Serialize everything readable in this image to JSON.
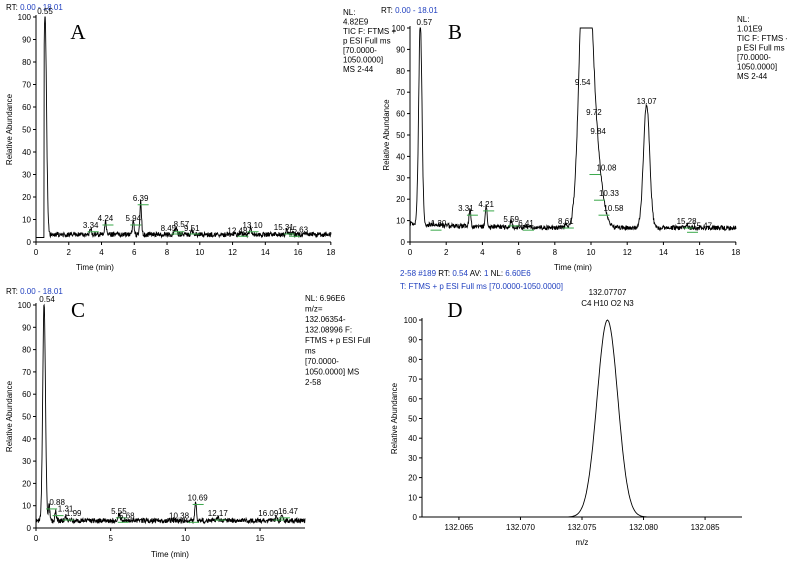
{
  "chart_data": [
    {
      "type": "line",
      "panel_letter": "A",
      "rt_label": "RT:",
      "rt_range": "0.00 - 18.01",
      "info_lines": [
        "NL:",
        "4.82E9",
        "TIC F: FTMS +",
        "p ESI Full ms",
        "[70.0000-",
        "1050.0000]",
        "MS 2-44"
      ],
      "xlabel": "Time (min)",
      "ylabel": "Relative Abundance",
      "xlim": [
        0,
        18.01
      ],
      "ylim": [
        0,
        100
      ],
      "xticks": [
        0,
        2,
        4,
        6,
        8,
        10,
        12,
        14,
        16,
        18
      ],
      "yticks": [
        0,
        10,
        20,
        30,
        40,
        50,
        60,
        70,
        80,
        90,
        100
      ],
      "peaks": [
        {
          "x": 0.55,
          "y": 100,
          "label": "0.55"
        },
        {
          "x": 3.34,
          "y": 5,
          "label": "3.34"
        },
        {
          "x": 4.24,
          "y": 8,
          "label": "4.24"
        },
        {
          "x": 5.94,
          "y": 8,
          "label": "5.94"
        },
        {
          "x": 6.39,
          "y": 17,
          "label": "6.39"
        },
        {
          "x": 8.45,
          "y": 4,
          "label": "8.45"
        },
        {
          "x": 8.57,
          "y": 5,
          "label": "8.57"
        },
        {
          "x": 9.51,
          "y": 4,
          "label": "9.51"
        },
        {
          "x": 12.48,
          "y": 3,
          "label": "12.48"
        },
        {
          "x": 13.1,
          "y": 5,
          "label": "13.10"
        },
        {
          "x": 15.31,
          "y": 4,
          "label": "15.31"
        },
        {
          "x": 15.63,
          "y": 3,
          "label": "15.63"
        }
      ]
    },
    {
      "type": "line",
      "panel_letter": "B",
      "rt_label": "RT:",
      "rt_range": "0.00 - 18.01",
      "info_lines": [
        "NL:",
        "1.01E9",
        "TIC F: FTMS -",
        "p ESI Full ms",
        "[70.0000-",
        "1050.0000]",
        "MS 2-44"
      ],
      "xlabel": "Time (min)",
      "ylabel": "Relative Abundance",
      "xlim": [
        0,
        18.01
      ],
      "ylim": [
        0,
        100
      ],
      "xticks": [
        0,
        2,
        4,
        6,
        8,
        10,
        12,
        14,
        16,
        18
      ],
      "yticks": [
        0,
        10,
        20,
        30,
        40,
        50,
        60,
        70,
        80,
        90,
        100
      ],
      "peaks": [
        {
          "x": 0.57,
          "y": 100,
          "label": "0.57"
        },
        {
          "x": 1.3,
          "y": 6,
          "label": "1.30"
        },
        {
          "x": 3.31,
          "y": 13,
          "label": "3.31"
        },
        {
          "x": 4.21,
          "y": 15,
          "label": "4.21"
        },
        {
          "x": 5.59,
          "y": 8,
          "label": "5.59"
        },
        {
          "x": 6.41,
          "y": 6,
          "label": "6.41"
        },
        {
          "x": 8.61,
          "y": 7,
          "label": "8.61"
        },
        {
          "x": 9.54,
          "y": 72,
          "label": "9.54"
        },
        {
          "x": 9.72,
          "y": 58,
          "label": "9.72"
        },
        {
          "x": 9.84,
          "y": 49,
          "label": "9.84"
        },
        {
          "x": 10.08,
          "y": 32,
          "label": "10.08"
        },
        {
          "x": 10.33,
          "y": 20,
          "label": "10.33"
        },
        {
          "x": 10.58,
          "y": 13,
          "label": "10.58"
        },
        {
          "x": 13.07,
          "y": 63,
          "label": "13.07"
        },
        {
          "x": 15.28,
          "y": 7,
          "label": "15.28"
        },
        {
          "x": 15.47,
          "y": 5,
          "label": "15.47"
        }
      ]
    },
    {
      "type": "line",
      "panel_letter": "C",
      "rt_label": "RT:",
      "rt_range": "0.00 - 18.01",
      "info_lines": [
        "NL: 6.96E6",
        "m/z=",
        "132.06354-",
        "132.08996 F:",
        "FTMS + p ESI Full",
        "ms",
        "[70.0000-",
        "1050.0000]  MS",
        "2-58"
      ],
      "xlabel": "Time (min)",
      "ylabel": "Relative Abundance",
      "xlim": [
        0,
        18.01
      ],
      "ylim": [
        0,
        100
      ],
      "xticks": [
        0,
        5,
        10,
        15
      ],
      "yticks": [
        0,
        10,
        20,
        30,
        40,
        50,
        60,
        70,
        80,
        90,
        100
      ],
      "peaks": [
        {
          "x": 0.54,
          "y": 100,
          "label": "0.54"
        },
        {
          "x": 0.88,
          "y": 9,
          "label": "0.88"
        },
        {
          "x": 1.31,
          "y": 6,
          "label": "1.31"
        },
        {
          "x": 1.99,
          "y": 4,
          "label": "1.99"
        },
        {
          "x": 5.55,
          "y": 5,
          "label": "5.55"
        },
        {
          "x": 5.68,
          "y": 3,
          "label": "5.68"
        },
        {
          "x": 10.38,
          "y": 3,
          "label": "10.38"
        },
        {
          "x": 10.69,
          "y": 11,
          "label": "10.69"
        },
        {
          "x": 12.17,
          "y": 4,
          "label": "12.17"
        },
        {
          "x": 16.09,
          "y": 4,
          "label": "16.09"
        },
        {
          "x": 16.47,
          "y": 5,
          "label": "16.47"
        }
      ]
    },
    {
      "type": "line",
      "panel_letter": "D",
      "header_line1": [
        "2-58 #189",
        "RT:",
        "0.54",
        "AV:",
        "1",
        "NL:",
        "6.60E6"
      ],
      "header_line2": "T:  FTMS + p ESI Full ms [70.0000-1050.0000]",
      "peak_mz": "132.07707",
      "formula": "C4 H10 O2 N3",
      "xlabel": "m/z",
      "ylabel": "Relative Abundance",
      "xlim": [
        132.062,
        132.088
      ],
      "ylim": [
        0,
        100
      ],
      "xticks": [
        132.065,
        132.07,
        132.075,
        132.08,
        132.085
      ],
      "xtick_labels": [
        "132.065",
        "132.070",
        "132.075",
        "132.080",
        "132.085"
      ],
      "yticks": [
        0,
        10,
        20,
        30,
        40,
        50,
        60,
        70,
        80,
        90,
        100
      ],
      "peak": {
        "center": 132.07707,
        "height": 100,
        "halfwidth": 0.0014
      }
    }
  ],
  "colors": {
    "axis": "#000000",
    "trace": "#000000",
    "rt_blue": "#1f3fbf",
    "marker_green": "#3aa84a"
  }
}
